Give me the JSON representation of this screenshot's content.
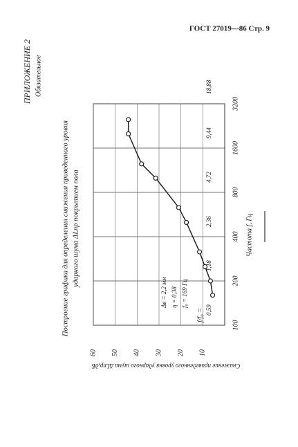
{
  "header": "ГОСТ 27019—86 Стр. 9",
  "appendix": "ПРИЛОЖЕНИЕ 2",
  "appendix_note": "Обязательное",
  "chart_data": {
    "type": "line",
    "title": [
      "Построение графика для определения снижения приведенного уровня",
      "ударного шума ΔLпр покрытием пола"
    ],
    "x_label": "Частота f, Гц",
    "y_label": "Снижение приведенного уровня ударного шума ΔLпр,дБ",
    "x": [
      160,
      200,
      250,
      315,
      500,
      630,
      1000,
      1250,
      2000,
      2500
    ],
    "series": [
      {
        "color": "#222222",
        "values": [
          5.5,
          6.5,
          9,
          11.5,
          17.5,
          21,
          31.5,
          38,
          44,
          44
        ]
      }
    ],
    "xlim": [
      100,
      3200
    ],
    "log_x": true,
    "xticks": [
      100,
      200,
      400,
      800,
      1600,
      3200
    ],
    "ylim": [
      0,
      60
    ],
    "yticks": [
      10,
      20,
      30,
      40,
      50,
      60
    ],
    "grid": true,
    "ratio_label": "f/f₀ =",
    "ratio_ticks": [
      {
        "value": 100,
        "label": "0,59"
      },
      {
        "value": 200,
        "label": "1,18"
      },
      {
        "value": 400,
        "label": "2,36"
      },
      {
        "value": 800,
        "label": "4,72"
      },
      {
        "value": 1600,
        "label": "9,44"
      },
      {
        "value": 3200,
        "label": "18,88"
      }
    ],
    "annotations": [
      "Δв = 2,2 мм",
      "η = 0,38",
      "f₀ = 169 Гц"
    ]
  }
}
